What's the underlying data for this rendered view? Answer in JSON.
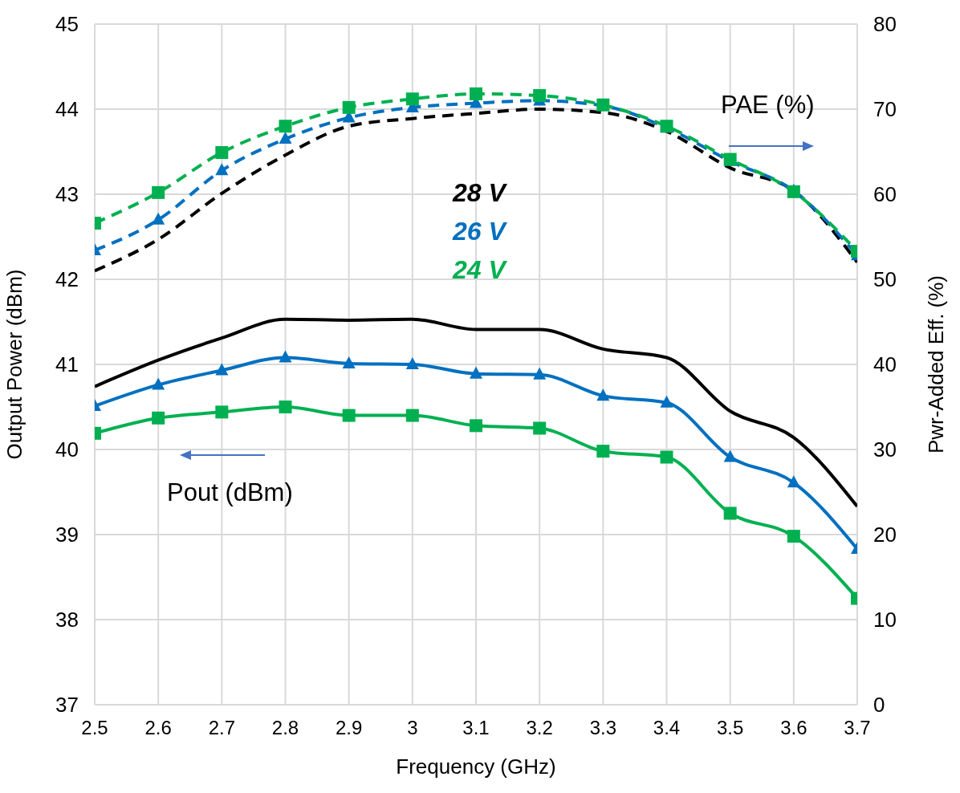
{
  "chart_data": {
    "type": "line",
    "xlabel": "Frequency (GHz)",
    "ylabel": "Output Power (dBm)",
    "y2label": "Pwr-Added Eff. (%)",
    "x": [
      2.5,
      2.6,
      2.7,
      2.8,
      2.9,
      3.0,
      3.1,
      3.2,
      3.3,
      3.4,
      3.5,
      3.6,
      3.7
    ],
    "xlim": [
      2.5,
      3.7
    ],
    "xticks": [
      2.5,
      2.6,
      2.7,
      2.8,
      2.9,
      3,
      3.1,
      3.2,
      3.3,
      3.4,
      3.5,
      3.6,
      3.7
    ],
    "ylim": [
      37,
      45
    ],
    "yticks": [
      37,
      38,
      39,
      40,
      41,
      42,
      43,
      44,
      45
    ],
    "y2lim": [
      0,
      80
    ],
    "y2ticks": [
      0,
      10,
      20,
      30,
      40,
      50,
      60,
      70,
      80
    ],
    "grid": true,
    "legend": "center",
    "line_style": "solid",
    "series": [
      {
        "color": "#000000",
        "marker": "none",
        "values": [
          40.74,
          41.05,
          41.31,
          41.53,
          41.52,
          41.53,
          41.41,
          41.41,
          41.18,
          41.08,
          40.45,
          40.14,
          39.33
        ]
      },
      {
        "color": "#0070c0",
        "marker": "triangle",
        "values": [
          40.51,
          40.76,
          40.93,
          41.08,
          41.01,
          41.0,
          40.89,
          40.88,
          40.63,
          40.55,
          39.91,
          39.61,
          38.83
        ]
      },
      {
        "color": "#00b050",
        "marker": "square",
        "values": [
          40.19,
          40.37,
          40.44,
          40.5,
          40.4,
          40.4,
          40.28,
          40.25,
          39.98,
          39.91,
          39.25,
          38.98,
          38.25
        ]
      },
      {
        "name": "28 V",
        "color": "#000000",
        "marker": "none",
        "axis": "y2",
        "line_style": "dashed",
        "values": [
          51.0,
          54.7,
          60.1,
          64.6,
          68.0,
          68.9,
          69.5,
          70.0,
          69.6,
          67.4,
          63.1,
          60.4,
          52.0
        ]
      },
      {
        "name": "26 V",
        "color": "#0070c0",
        "marker": "triangle",
        "axis": "y2",
        "line_style": "dashed",
        "values": [
          53.4,
          57.0,
          62.8,
          66.5,
          69.0,
          70.2,
          70.7,
          71.0,
          70.4,
          67.8,
          63.9,
          60.4,
          52.8
        ]
      },
      {
        "name": "24 V",
        "color": "#00b050",
        "marker": "square",
        "axis": "y2",
        "line_style": "dashed",
        "values": [
          56.6,
          60.2,
          64.9,
          68.0,
          70.2,
          71.2,
          71.8,
          71.6,
          70.5,
          68.0,
          64.1,
          60.3,
          53.3
        ]
      }
    ],
    "annotations": [
      "PAE (%)",
      "Pout (dBm)"
    ]
  }
}
